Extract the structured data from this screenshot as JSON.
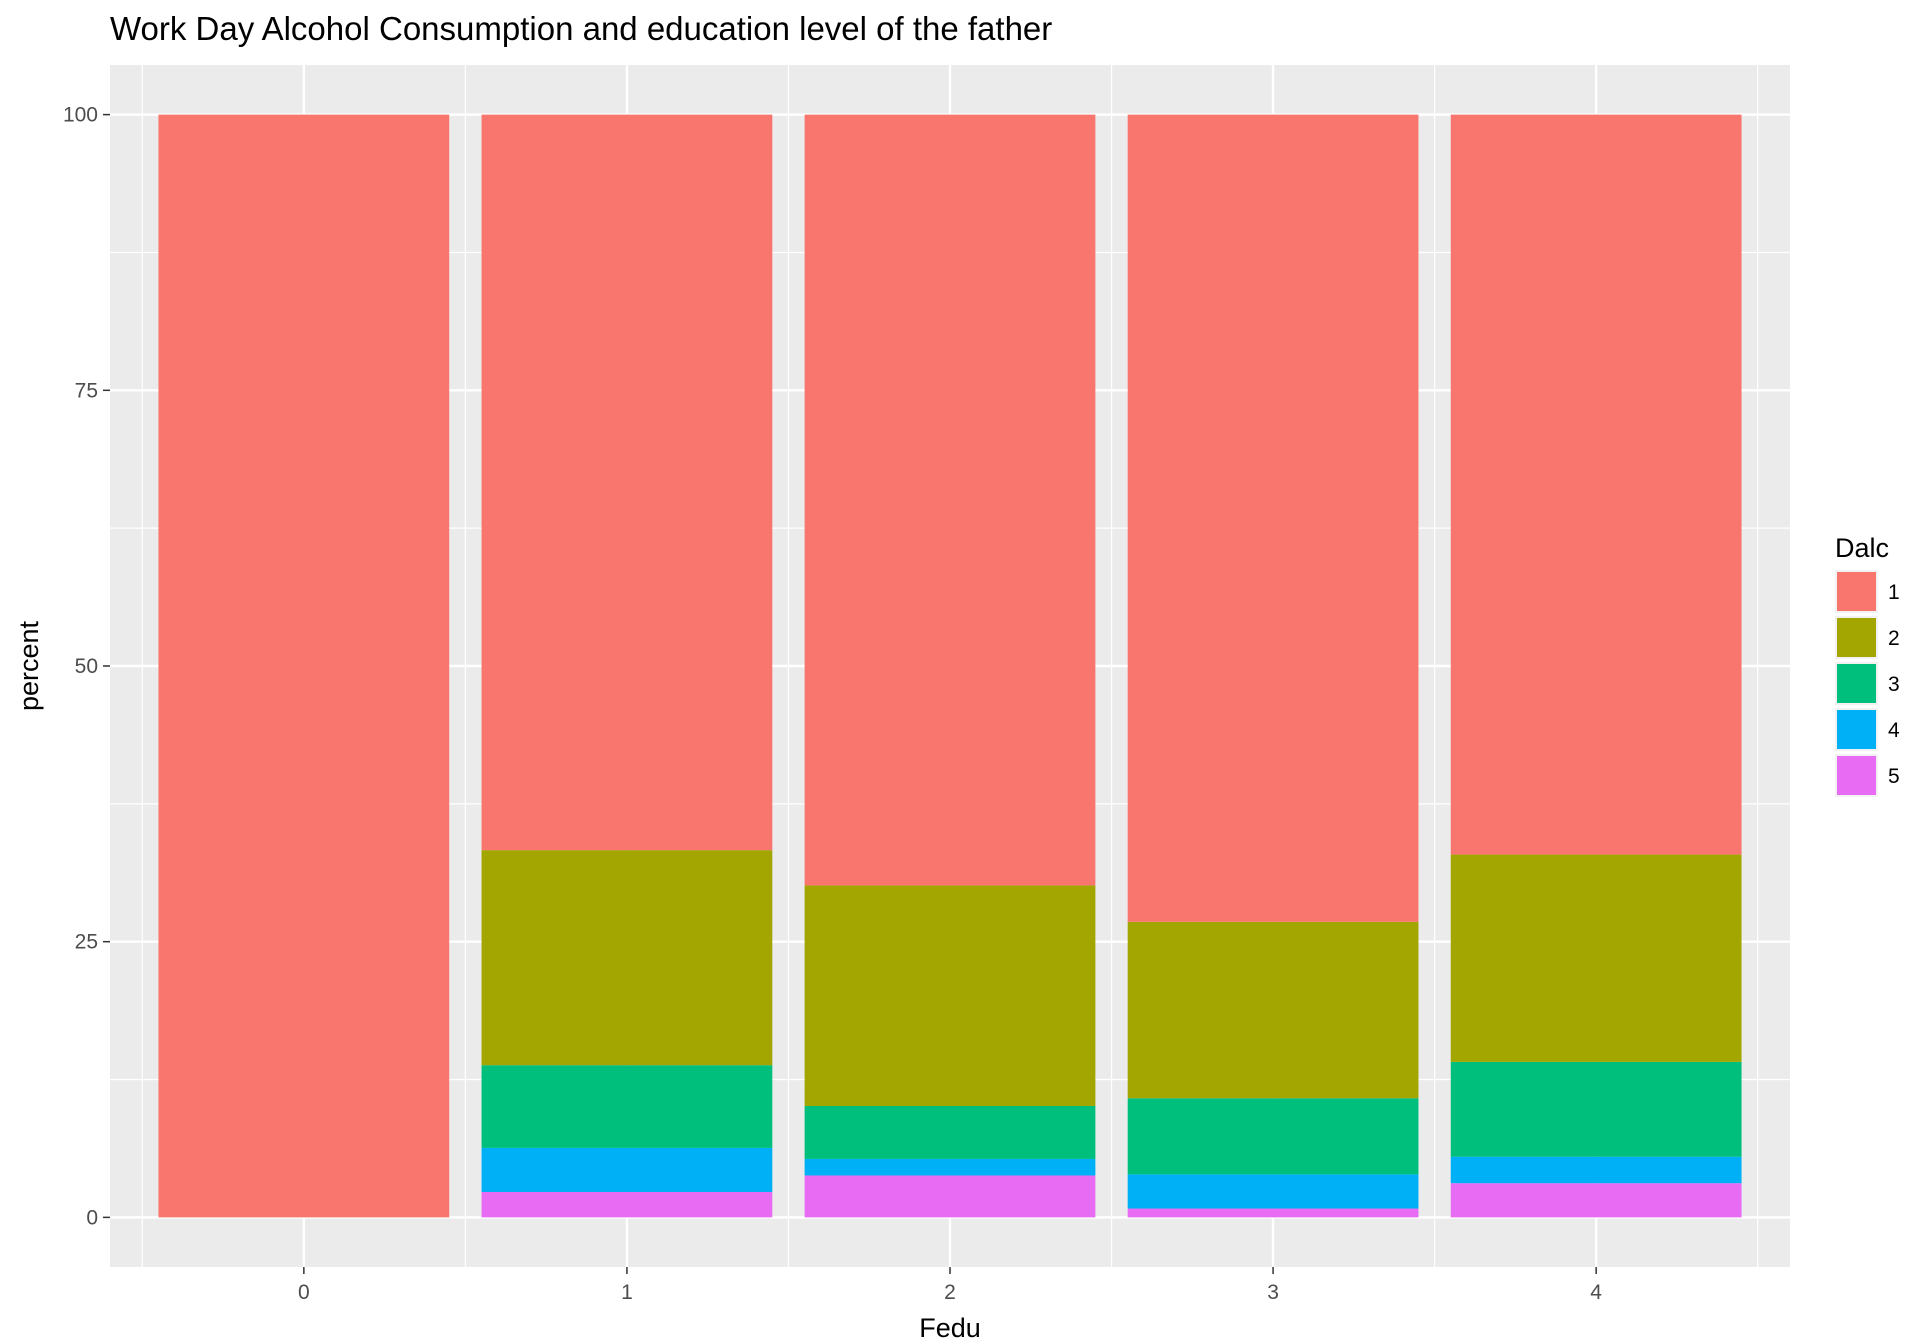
{
  "chart_data": {
    "type": "bar",
    "stacked": true,
    "title": "Work Day Alcohol Consumption and education level of the father",
    "xlabel": "Fedu",
    "ylabel": "percent",
    "categories": [
      "0",
      "1",
      "2",
      "3",
      "4"
    ],
    "y_ticks": [
      "0",
      "25",
      "50",
      "75",
      "100"
    ],
    "ylim": [
      -4.5,
      104.5
    ],
    "grid": true,
    "legend_position": "right",
    "legend_title": "Dalc",
    "series": [
      {
        "name": "5",
        "color": "#E76BF3",
        "values": [
          0,
          2.3,
          3.8,
          0.8,
          3.1
        ]
      },
      {
        "name": "4",
        "color": "#00B0F6",
        "values": [
          0,
          4.0,
          1.5,
          3.1,
          2.4
        ]
      },
      {
        "name": "3",
        "color": "#00BF7D",
        "values": [
          0,
          7.5,
          4.8,
          6.9,
          8.6
        ]
      },
      {
        "name": "2",
        "color": "#A3A500",
        "values": [
          0,
          19.5,
          20.0,
          16.0,
          18.8
        ]
      },
      {
        "name": "1",
        "color": "#F8766D",
        "values": [
          100,
          66.7,
          69.9,
          73.2,
          67.1
        ]
      }
    ],
    "legend_order": [
      "1",
      "2",
      "3",
      "4",
      "5"
    ]
  }
}
